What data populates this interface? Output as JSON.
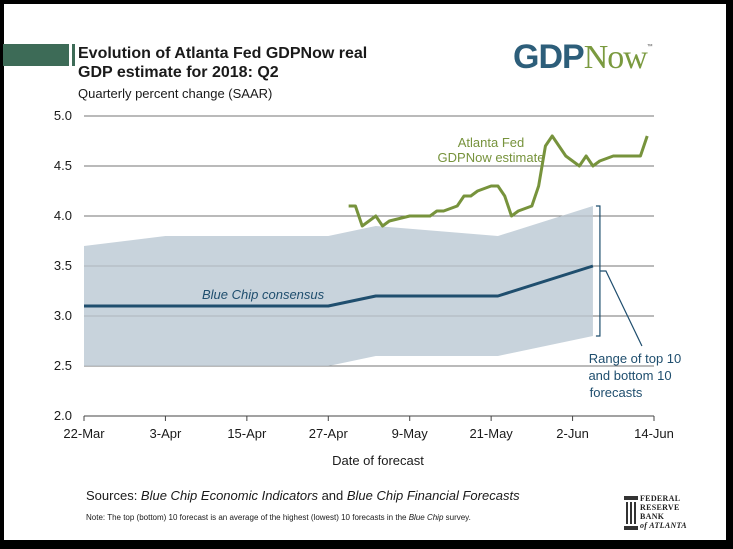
{
  "title_line1": "Evolution of Atlanta Fed GDPNow real",
  "title_line2": "GDP estimate for 2018: Q2",
  "subtitle": "Quarterly percent change (SAAR)",
  "logo": {
    "gdp": "GDP",
    "now": "Now",
    "tm": "™"
  },
  "sources": {
    "prefix": "Sources:  ",
    "src1": "Blue Chip Economic Indicators",
    "mid": " and ",
    "src2": "Blue Chip Financial Forecasts"
  },
  "note": {
    "prefix": "Note:  The top (bottom) 10 forecast is an average of the highest (lowest) 10 forecasts in the ",
    "italic": "Blue Chip",
    "suffix": " survey."
  },
  "frb": {
    "line1": "FEDERAL",
    "line2": "RESERVE",
    "line3": "BANK",
    "line4": "of ATLANTA"
  },
  "colors": {
    "gdpnow": "#77933c",
    "consensus": "#1f4e6e",
    "band": "#c8d3dc",
    "grid": "#777777"
  },
  "chart_data": {
    "type": "line",
    "xlabel": "Date of forecast",
    "ylabel": "",
    "ylim": [
      2.0,
      5.0
    ],
    "yticks": [
      "5.0",
      "4.5",
      "4.0",
      "3.5",
      "3.0",
      "2.5",
      "2.0"
    ],
    "yticks_values": [
      5.0,
      4.5,
      4.0,
      3.5,
      3.0,
      2.5,
      2.0
    ],
    "xticks": [
      "22-Mar",
      "3-Apr",
      "15-Apr",
      "27-Apr",
      "9-May",
      "21-May",
      "2-Jun",
      "14-Jun"
    ],
    "xticks_days": [
      0,
      12,
      24,
      36,
      48,
      60,
      72,
      84
    ],
    "series": [
      {
        "name": "Atlanta Fed GDPNow estimate",
        "label_line1": "Atlanta Fed",
        "label_line2": "GDPNow estimate",
        "x": [
          39,
          40,
          41,
          42,
          43,
          44,
          45,
          48,
          50,
          51,
          52,
          53,
          55,
          56,
          57,
          58,
          60,
          61,
          62,
          63,
          64,
          66,
          67,
          68,
          69,
          70,
          71,
          73,
          74,
          75,
          76,
          78,
          82,
          83
        ],
        "values": [
          4.1,
          4.1,
          3.9,
          3.95,
          4.0,
          3.9,
          3.95,
          4.0,
          4.0,
          4.0,
          4.05,
          4.05,
          4.1,
          4.2,
          4.2,
          4.25,
          4.3,
          4.3,
          4.2,
          4.0,
          4.05,
          4.1,
          4.3,
          4.7,
          4.8,
          4.7,
          4.6,
          4.5,
          4.6,
          4.5,
          4.55,
          4.6,
          4.6,
          4.8
        ]
      },
      {
        "name": "Blue Chip consensus",
        "label": "Blue Chip consensus",
        "x": [
          0,
          36,
          43,
          61,
          75
        ],
        "values": [
          3.1,
          3.1,
          3.2,
          3.2,
          3.5
        ]
      }
    ],
    "band": {
      "label_line1": "Range of top 10",
      "label_line2": "and bottom 10",
      "label_line3": "forecasts",
      "x": [
        0,
        12,
        24,
        36,
        43,
        61,
        75
      ],
      "upper": [
        3.7,
        3.8,
        3.8,
        3.8,
        3.9,
        3.8,
        4.1
      ],
      "lower": [
        2.5,
        2.5,
        2.5,
        2.5,
        2.6,
        2.6,
        2.8
      ]
    }
  }
}
